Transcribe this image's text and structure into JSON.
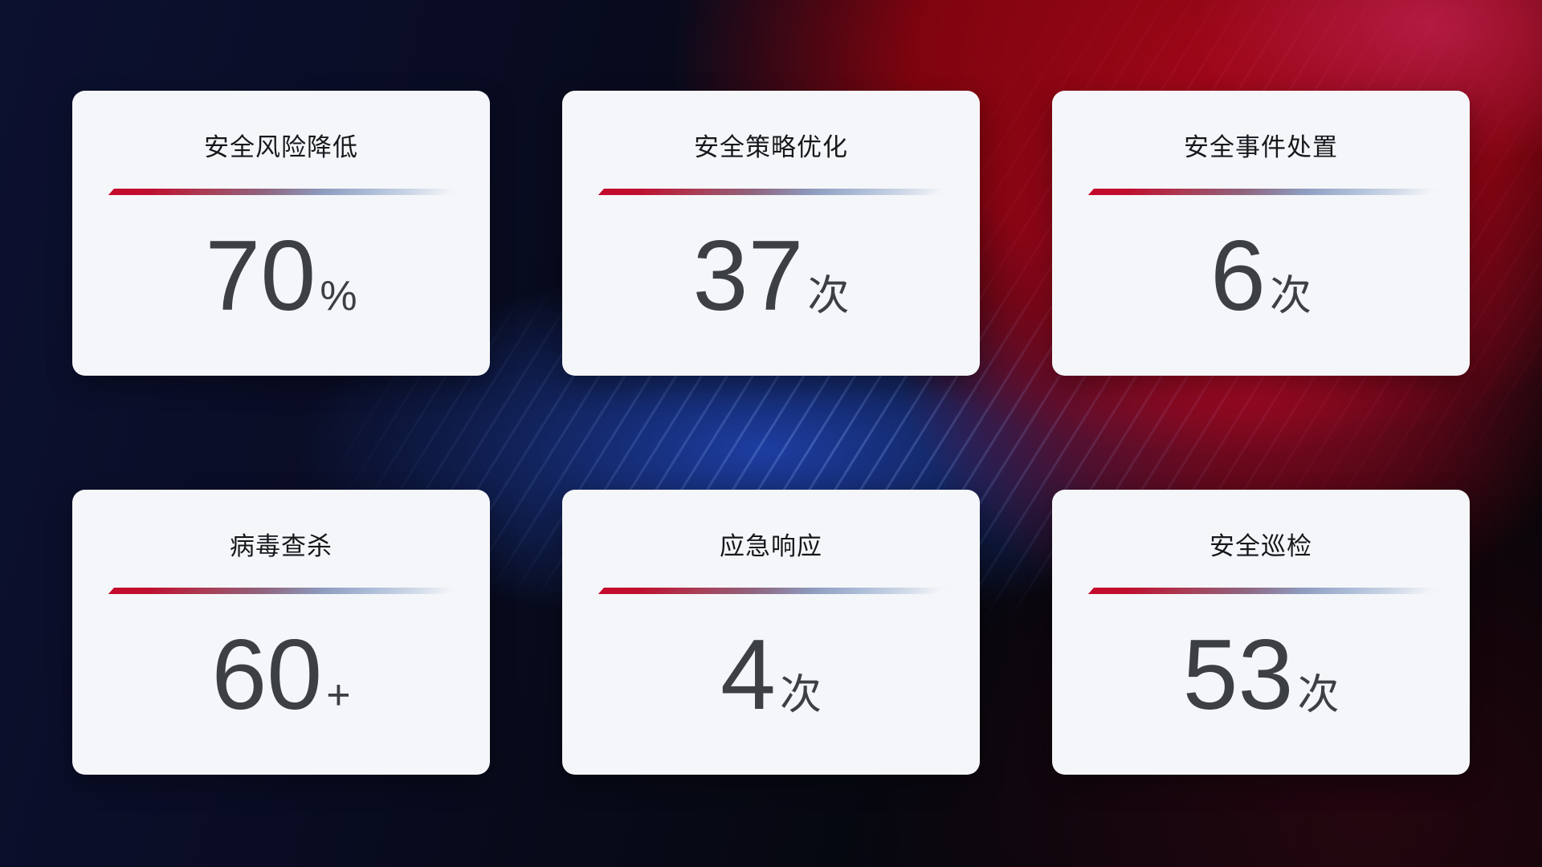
{
  "cards": [
    {
      "title": "安全风险降低",
      "value": "70",
      "unit": "%"
    },
    {
      "title": "安全策略优化",
      "value": "37",
      "unit": "次"
    },
    {
      "title": "安全事件处置",
      "value": "6",
      "unit": "次"
    },
    {
      "title": "病毒查杀",
      "value": "60",
      "unit": "+"
    },
    {
      "title": "应急响应",
      "value": "4",
      "unit": "次"
    },
    {
      "title": "安全巡检",
      "value": "53",
      "unit": "次"
    }
  ],
  "colors": {
    "card-bg": "#f5f6f9",
    "title-color": "#17181b",
    "value-color": "#3c3f44",
    "accent-red": "#c40a2c",
    "accent-blue": "#aebfd9"
  }
}
